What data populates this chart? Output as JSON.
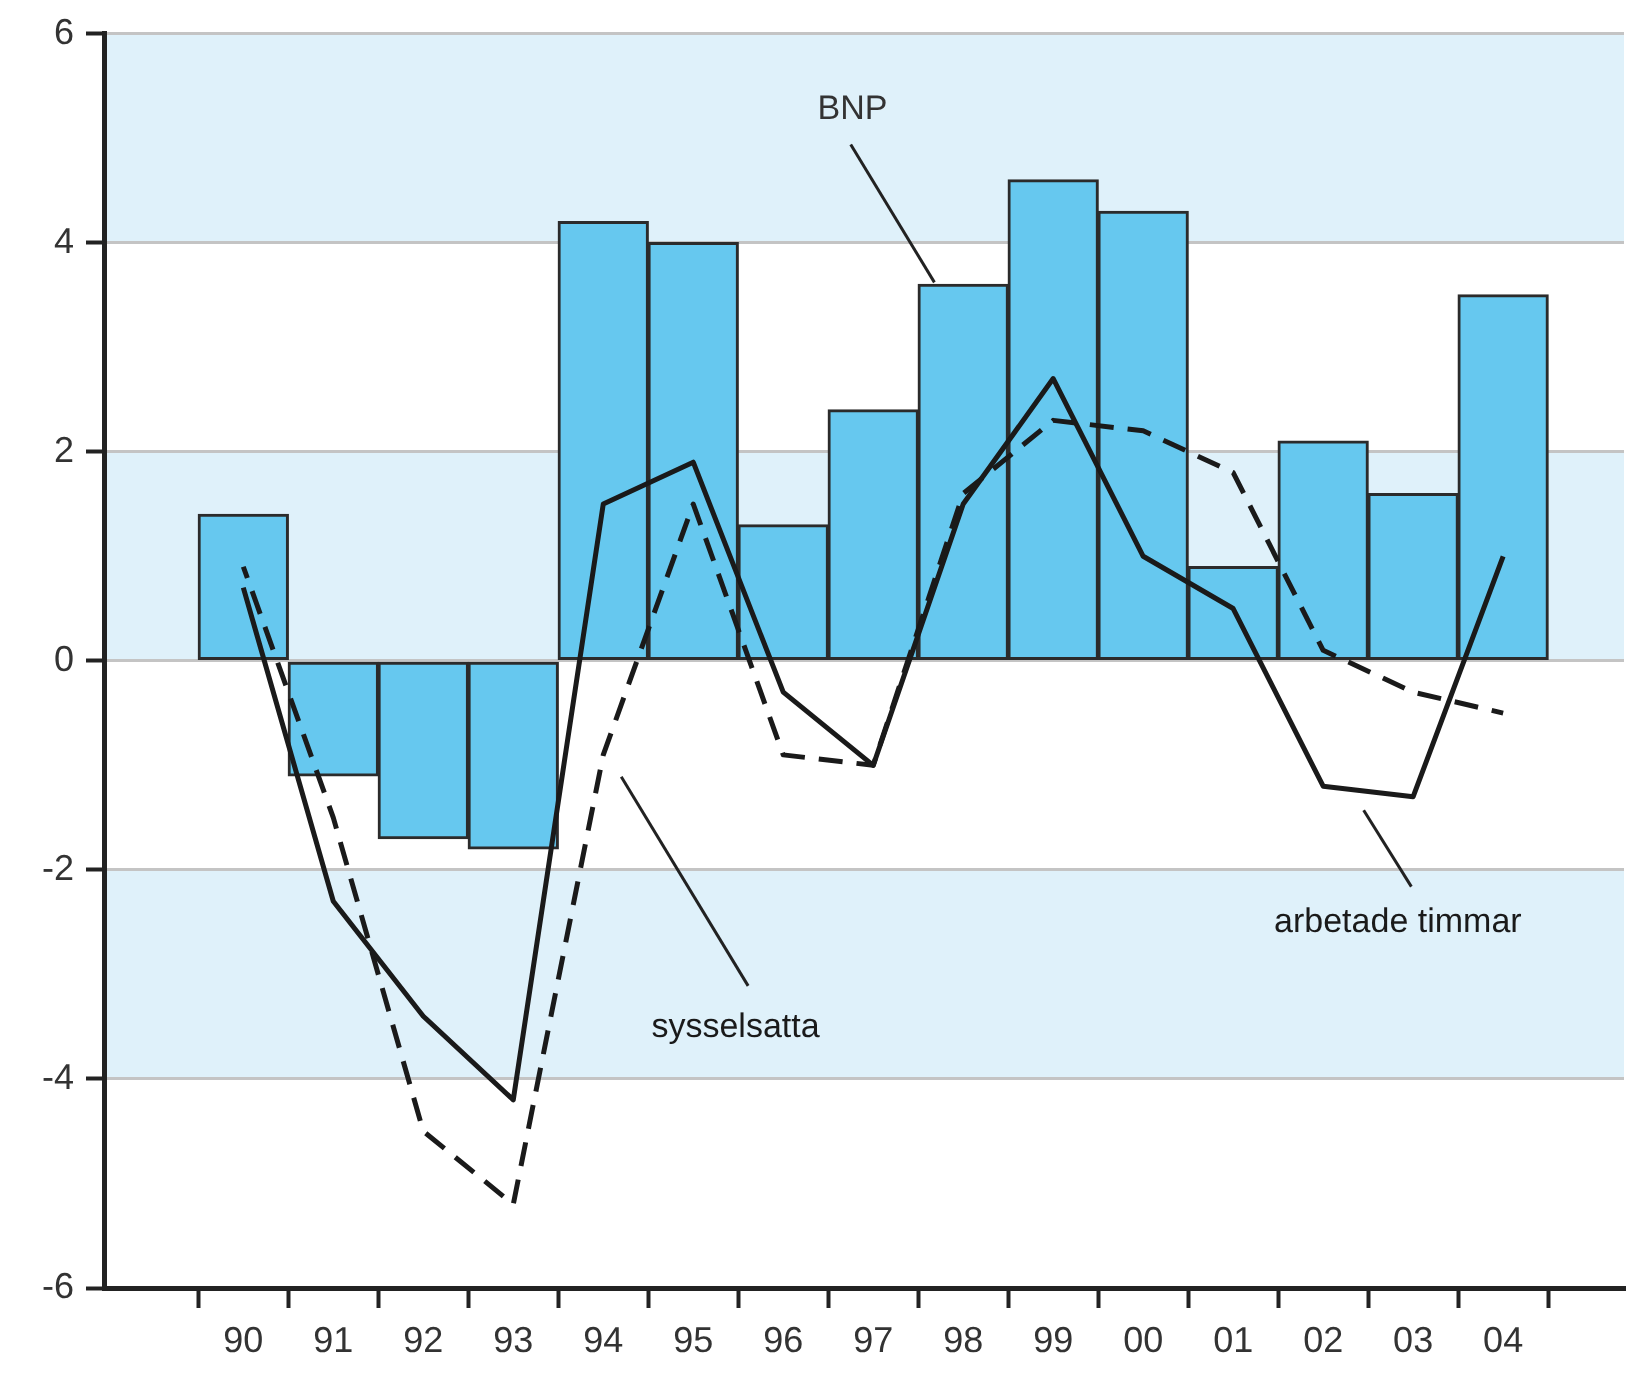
{
  "chart_data": {
    "type": "bar",
    "categories": [
      "90",
      "91",
      "92",
      "93",
      "94",
      "95",
      "96",
      "97",
      "98",
      "99",
      "00",
      "01",
      "02",
      "03",
      "04"
    ],
    "series": [
      {
        "name": "BNP",
        "color": "#66c8ef",
        "values": [
          1.4,
          -1.1,
          -1.7,
          -1.8,
          4.2,
          4.0,
          1.3,
          2.4,
          3.6,
          4.6,
          4.3,
          0.9,
          2.1,
          1.6,
          3.5
        ]
      },
      {
        "name": "arbetade timmar",
        "type": "line",
        "color": "#1a1a1a",
        "line_style": "solid",
        "values": [
          0.7,
          -2.3,
          -3.4,
          -4.2,
          1.5,
          1.9,
          -0.3,
          -1.0,
          1.5,
          2.7,
          1.0,
          0.5,
          -1.2,
          -1.3,
          1.0
        ]
      },
      {
        "name": "sysselsatta",
        "type": "line",
        "color": "#1a1a1a",
        "line_style": "dashed",
        "values": [
          0.9,
          -1.5,
          -4.5,
          -5.2,
          -0.9,
          1.5,
          -0.9,
          -1.0,
          1.6,
          2.3,
          2.2,
          1.8,
          0.1,
          -0.3,
          -0.5
        ]
      }
    ],
    "ylim": [
      -6,
      6
    ],
    "yticks": [
      -6,
      -4,
      -2,
      0,
      2,
      4,
      6
    ],
    "grid": "y",
    "bands": [
      {
        "axis": "y",
        "from": 4,
        "to": 6,
        "color": "#dff1fa"
      },
      {
        "axis": "y",
        "from": 0,
        "to": 2,
        "color": "#dff1fa"
      },
      {
        "axis": "y",
        "from": -4,
        "to": -2,
        "color": "#dff1fa"
      }
    ]
  }
}
